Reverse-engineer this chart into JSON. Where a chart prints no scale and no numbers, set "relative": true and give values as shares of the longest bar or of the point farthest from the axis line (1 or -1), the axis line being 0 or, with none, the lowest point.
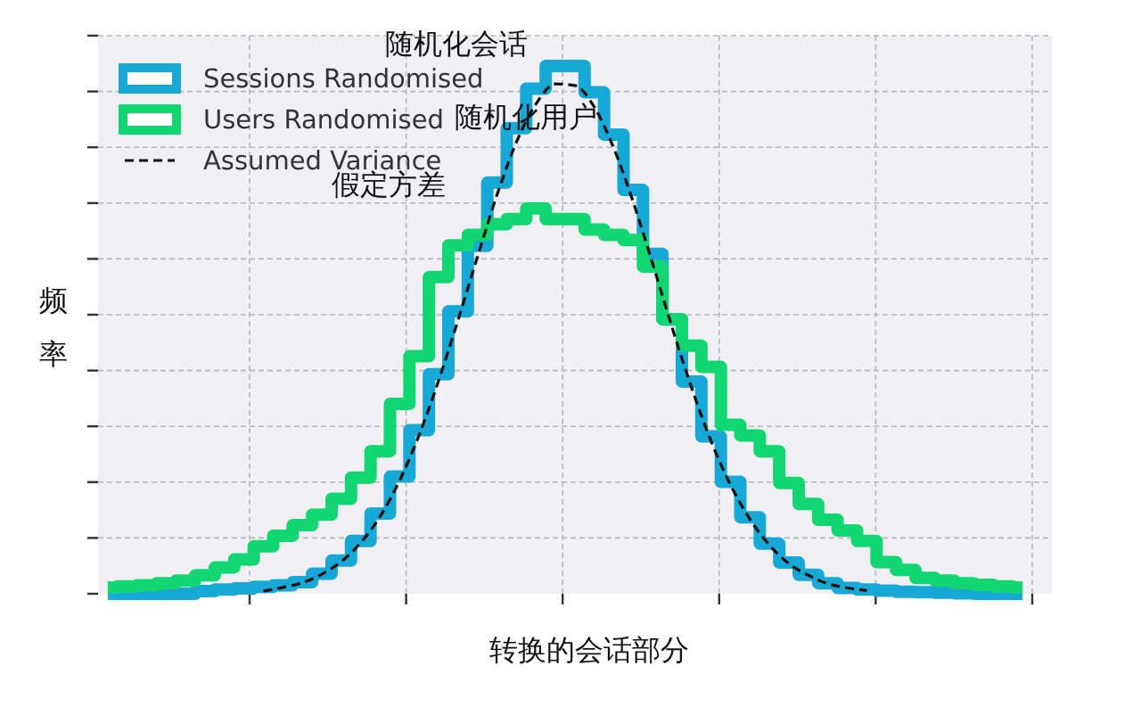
{
  "chart_data": {
    "type": "step",
    "relative": true,
    "xlabel": "转换的会话部分",
    "ylabel": "频率",
    "grid": true,
    "legend": "top left",
    "annotations": [
      "随机化会话",
      "随机化用户",
      "假定方差"
    ],
    "categories": [
      null,
      null,
      null,
      null,
      null,
      null,
      null,
      null,
      null,
      null,
      null,
      null,
      null,
      null,
      null,
      null,
      null,
      null,
      null,
      null,
      null,
      null,
      null,
      null,
      null,
      null,
      null,
      null,
      null,
      null,
      null,
      null,
      null,
      null,
      null,
      null,
      null,
      null,
      null,
      null,
      null,
      null,
      null,
      null,
      null,
      null,
      null,
      null
    ],
    "series": [
      {
        "name": "Sessions Randomised",
        "color": "#17a8d6",
        "values": [
          0,
          0,
          0,
          0,
          0,
          0.005,
          0.008,
          0.01,
          0.013,
          0.016,
          0.022,
          0.038,
          0.063,
          0.1,
          0.152,
          0.222,
          0.31,
          0.416,
          0.535,
          0.659,
          0.779,
          0.882,
          0.957,
          1,
          1,
          0.95,
          0.87,
          0.765,
          0.644,
          0.52,
          0.402,
          0.298,
          0.212,
          0.145,
          0.095,
          0.059,
          0.036,
          0.02,
          0.011,
          0.008,
          0.006,
          0.004,
          0.003,
          0.002,
          0.001,
          0,
          0,
          0
        ]
      },
      {
        "name": "Users Randomised",
        "color": "#12d672",
        "values": [
          0.012,
          0.014,
          0.016,
          0.02,
          0.025,
          0.035,
          0.05,
          0.065,
          0.09,
          0.11,
          0.13,
          0.15,
          0.18,
          0.22,
          0.27,
          0.36,
          0.45,
          0.6,
          0.66,
          0.68,
          0.7,
          0.71,
          0.73,
          0.71,
          0.71,
          0.69,
          0.68,
          0.67,
          0.62,
          0.52,
          0.47,
          0.43,
          0.32,
          0.3,
          0.27,
          0.21,
          0.17,
          0.14,
          0.12,
          0.1,
          0.06,
          0.045,
          0.03,
          0.025,
          0.02,
          0.017,
          0.014,
          0.012
        ]
      },
      {
        "name": "Assumed Variance",
        "type": "line",
        "color": "#111111",
        "line_style": "dashed",
        "values": [
          null,
          null,
          null,
          null,
          null,
          null,
          null,
          null,
          0.005,
          0.012,
          0.021,
          0.037,
          0.061,
          0.097,
          0.147,
          0.215,
          0.301,
          0.404,
          0.519,
          0.639,
          0.756,
          0.856,
          0.928,
          0.966,
          0.963,
          0.922,
          0.844,
          0.742,
          0.625,
          0.504,
          0.39,
          0.289,
          0.206,
          0.141,
          0.092,
          0.057,
          0.035,
          0.019,
          0.011,
          0.006,
          null,
          null,
          null,
          null,
          null,
          null,
          null,
          null
        ]
      }
    ]
  }
}
